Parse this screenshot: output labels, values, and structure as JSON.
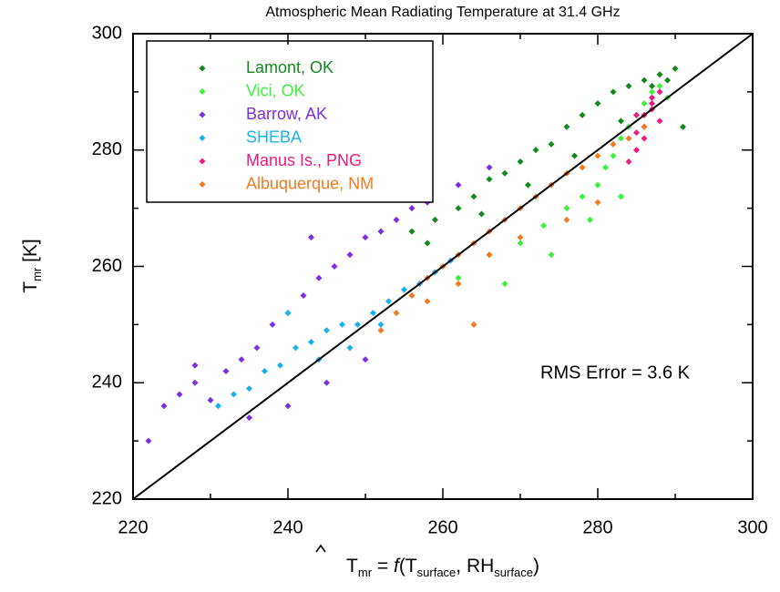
{
  "chart_data": {
    "type": "scatter",
    "title": "Atmospheric Mean Radiating Temperature at 31.4 GHz",
    "xlabel": [
      {
        "text": "T",
        "hat": true
      },
      {
        "text": "mr",
        "sub": true
      },
      {
        "text": " = "
      },
      {
        "text": "f",
        "italic": true
      },
      {
        "text": "(T"
      },
      {
        "text": "surface",
        "sub": true
      },
      {
        "text": ", RH"
      },
      {
        "text": "surface",
        "sub": true
      },
      {
        "text": ")"
      }
    ],
    "ylabel": [
      {
        "text": "T"
      },
      {
        "text": "mr",
        "sub": true
      },
      {
        "text": "  [K]"
      }
    ],
    "annotation": "RMS Error = 3.6 K",
    "xlim": [
      220,
      300
    ],
    "ylim": [
      220,
      300
    ],
    "xticks": [
      220,
      240,
      260,
      280,
      300
    ],
    "yticks": [
      220,
      240,
      260,
      280,
      300
    ],
    "xminorticks": [
      230,
      250,
      270,
      290
    ],
    "yminorticks": [
      230,
      250,
      270,
      290
    ],
    "legend": "upper-left",
    "series": [
      {
        "name": "Lamont, OK",
        "color": "#12891c",
        "x": [
          256,
          259,
          262,
          264,
          266,
          268,
          270,
          272,
          274,
          276,
          278,
          280,
          282,
          284,
          286,
          288,
          289,
          290,
          258,
          265,
          271,
          277,
          283,
          287,
          291
        ],
        "values": [
          266,
          268,
          270,
          272,
          275,
          276,
          278,
          280,
          281,
          284,
          286,
          288,
          290,
          291,
          292,
          293,
          292,
          294,
          264,
          269,
          274,
          279,
          285,
          291,
          284
        ]
      },
      {
        "name": "Vici, OK",
        "color": "#3cf03c",
        "x": [
          262,
          266,
          270,
          273,
          276,
          278,
          280,
          281,
          282,
          283,
          284,
          285,
          286,
          287,
          288,
          289,
          268,
          274,
          279,
          283
        ],
        "values": [
          258,
          262,
          264,
          267,
          270,
          272,
          274,
          277,
          279,
          282,
          284,
          286,
          288,
          290,
          291,
          289,
          257,
          262,
          268,
          272
        ]
      },
      {
        "name": "Barrow, AK",
        "color": "#7b2fe0",
        "x": [
          222,
          224,
          226,
          228,
          230,
          232,
          234,
          236,
          238,
          240,
          242,
          244,
          246,
          248,
          250,
          252,
          254,
          256,
          258,
          262,
          235,
          240,
          245,
          250,
          228,
          243,
          266
        ],
        "values": [
          230,
          236,
          238,
          240,
          237,
          242,
          244,
          246,
          250,
          252,
          255,
          258,
          260,
          262,
          265,
          266,
          268,
          270,
          271,
          274,
          234,
          236,
          240,
          244,
          243,
          265,
          277
        ]
      },
      {
        "name": "SHEBA",
        "color": "#1ab2ec",
        "x": [
          231,
          233,
          235,
          237,
          239,
          241,
          243,
          245,
          247,
          249,
          251,
          253,
          255,
          257,
          259,
          261,
          244,
          248,
          252,
          240
        ],
        "values": [
          236,
          238,
          239,
          242,
          243,
          246,
          247,
          249,
          250,
          250,
          252,
          254,
          256,
          257,
          259,
          261,
          244,
          246,
          250,
          252
        ]
      },
      {
        "name": "Manus Is., PNG",
        "color": "#ee1a82",
        "x": [
          284,
          285,
          285,
          286,
          286,
          287,
          287,
          288,
          288,
          285,
          286,
          287
        ],
        "values": [
          278,
          280,
          283,
          284,
          286,
          287,
          289,
          285,
          290,
          286,
          282,
          288
        ]
      },
      {
        "name": "Albuquerque, NM",
        "color": "#f47a20",
        "x": [
          252,
          254,
          256,
          258,
          260,
          262,
          264,
          266,
          268,
          270,
          272,
          274,
          276,
          278,
          280,
          282,
          284,
          286,
          258,
          262,
          266,
          264,
          270,
          276,
          280
        ],
        "values": [
          249,
          252,
          255,
          258,
          260,
          262,
          264,
          266,
          268,
          270,
          272,
          274,
          276,
          277,
          279,
          281,
          282,
          284,
          254,
          257,
          262,
          250,
          265,
          268,
          271
        ]
      }
    ]
  }
}
